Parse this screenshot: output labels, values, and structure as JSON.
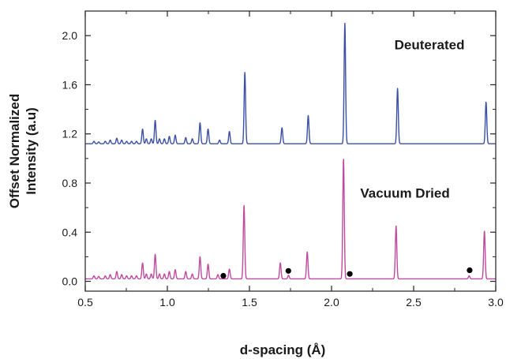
{
  "chart_data": {
    "type": "line",
    "title": "",
    "xlabel": "d-spacing (Å)",
    "ylabel_lines": [
      "Offset Normalized",
      "Intensity (a.u)"
    ],
    "xlim": [
      0.5,
      3.0
    ],
    "ylim": [
      -0.08,
      2.2
    ],
    "xticks": [
      0.5,
      1.0,
      1.5,
      2.0,
      2.5,
      3.0
    ],
    "xtick_labels": [
      "0.5",
      "1.0",
      "1.5",
      "2.0",
      "2.5",
      "3.0"
    ],
    "yticks": [
      0.0,
      0.4,
      0.8,
      1.2,
      1.6,
      2.0
    ],
    "ytick_labels": [
      "0.0",
      "0.4",
      "0.8",
      "1.2",
      "1.6",
      "2.0"
    ],
    "grid": false,
    "legend": "none",
    "series": [
      {
        "name": "Deuterated",
        "color": "#3a4fa8",
        "baseline": 1.12,
        "peak_width": 0.0045,
        "peaks": [
          [
            0.553,
            0.02
          ],
          [
            0.582,
            0.015
          ],
          [
            0.622,
            0.02
          ],
          [
            0.652,
            0.03
          ],
          [
            0.692,
            0.045
          ],
          [
            0.722,
            0.03
          ],
          [
            0.752,
            0.02
          ],
          [
            0.782,
            0.02
          ],
          [
            0.812,
            0.02
          ],
          [
            0.849,
            0.12
          ],
          [
            0.872,
            0.04
          ],
          [
            0.902,
            0.04
          ],
          [
            0.926,
            0.19
          ],
          [
            0.952,
            0.04
          ],
          [
            0.982,
            0.04
          ],
          [
            1.012,
            0.06
          ],
          [
            1.048,
            0.07
          ],
          [
            1.112,
            0.05
          ],
          [
            1.152,
            0.04
          ],
          [
            1.199,
            0.17
          ],
          [
            1.248,
            0.12
          ],
          [
            1.318,
            0.03
          ],
          [
            1.378,
            0.1
          ],
          [
            1.472,
            0.58
          ],
          [
            1.698,
            0.13
          ],
          [
            1.858,
            0.23
          ],
          [
            2.081,
            0.98
          ],
          [
            2.402,
            0.45
          ],
          [
            2.941,
            0.34
          ]
        ]
      },
      {
        "name": "Vacuum Dried",
        "color": "#c04aa0",
        "baseline": 0.02,
        "peak_width": 0.0045,
        "peaks": [
          [
            0.553,
            0.025
          ],
          [
            0.582,
            0.02
          ],
          [
            0.622,
            0.025
          ],
          [
            0.652,
            0.035
          ],
          [
            0.692,
            0.06
          ],
          [
            0.722,
            0.035
          ],
          [
            0.752,
            0.025
          ],
          [
            0.782,
            0.025
          ],
          [
            0.812,
            0.025
          ],
          [
            0.849,
            0.13
          ],
          [
            0.872,
            0.04
          ],
          [
            0.902,
            0.04
          ],
          [
            0.926,
            0.2
          ],
          [
            0.952,
            0.04
          ],
          [
            0.982,
            0.04
          ],
          [
            1.012,
            0.06
          ],
          [
            1.048,
            0.075
          ],
          [
            1.112,
            0.06
          ],
          [
            1.152,
            0.04
          ],
          [
            1.199,
            0.18
          ],
          [
            1.248,
            0.12
          ],
          [
            1.308,
            0.035
          ],
          [
            1.378,
            0.08
          ],
          [
            1.467,
            0.6
          ],
          [
            1.688,
            0.13
          ],
          [
            1.738,
            0.03
          ],
          [
            1.852,
            0.22
          ],
          [
            2.073,
            0.98
          ],
          [
            2.393,
            0.43
          ],
          [
            2.838,
            0.025
          ],
          [
            2.931,
            0.39
          ]
        ]
      }
    ],
    "series_labels": [
      {
        "text": "Deuterated",
        "x": 2.81,
        "y": 1.89
      },
      {
        "text": "Vacuum Dried",
        "x": 2.72,
        "y": 0.68
      }
    ],
    "markers": [
      {
        "x": 1.341,
        "y": 0.045
      },
      {
        "x": 1.737,
        "y": 0.085
      },
      {
        "x": 2.111,
        "y": 0.06
      },
      {
        "x": 2.841,
        "y": 0.09
      }
    ]
  }
}
